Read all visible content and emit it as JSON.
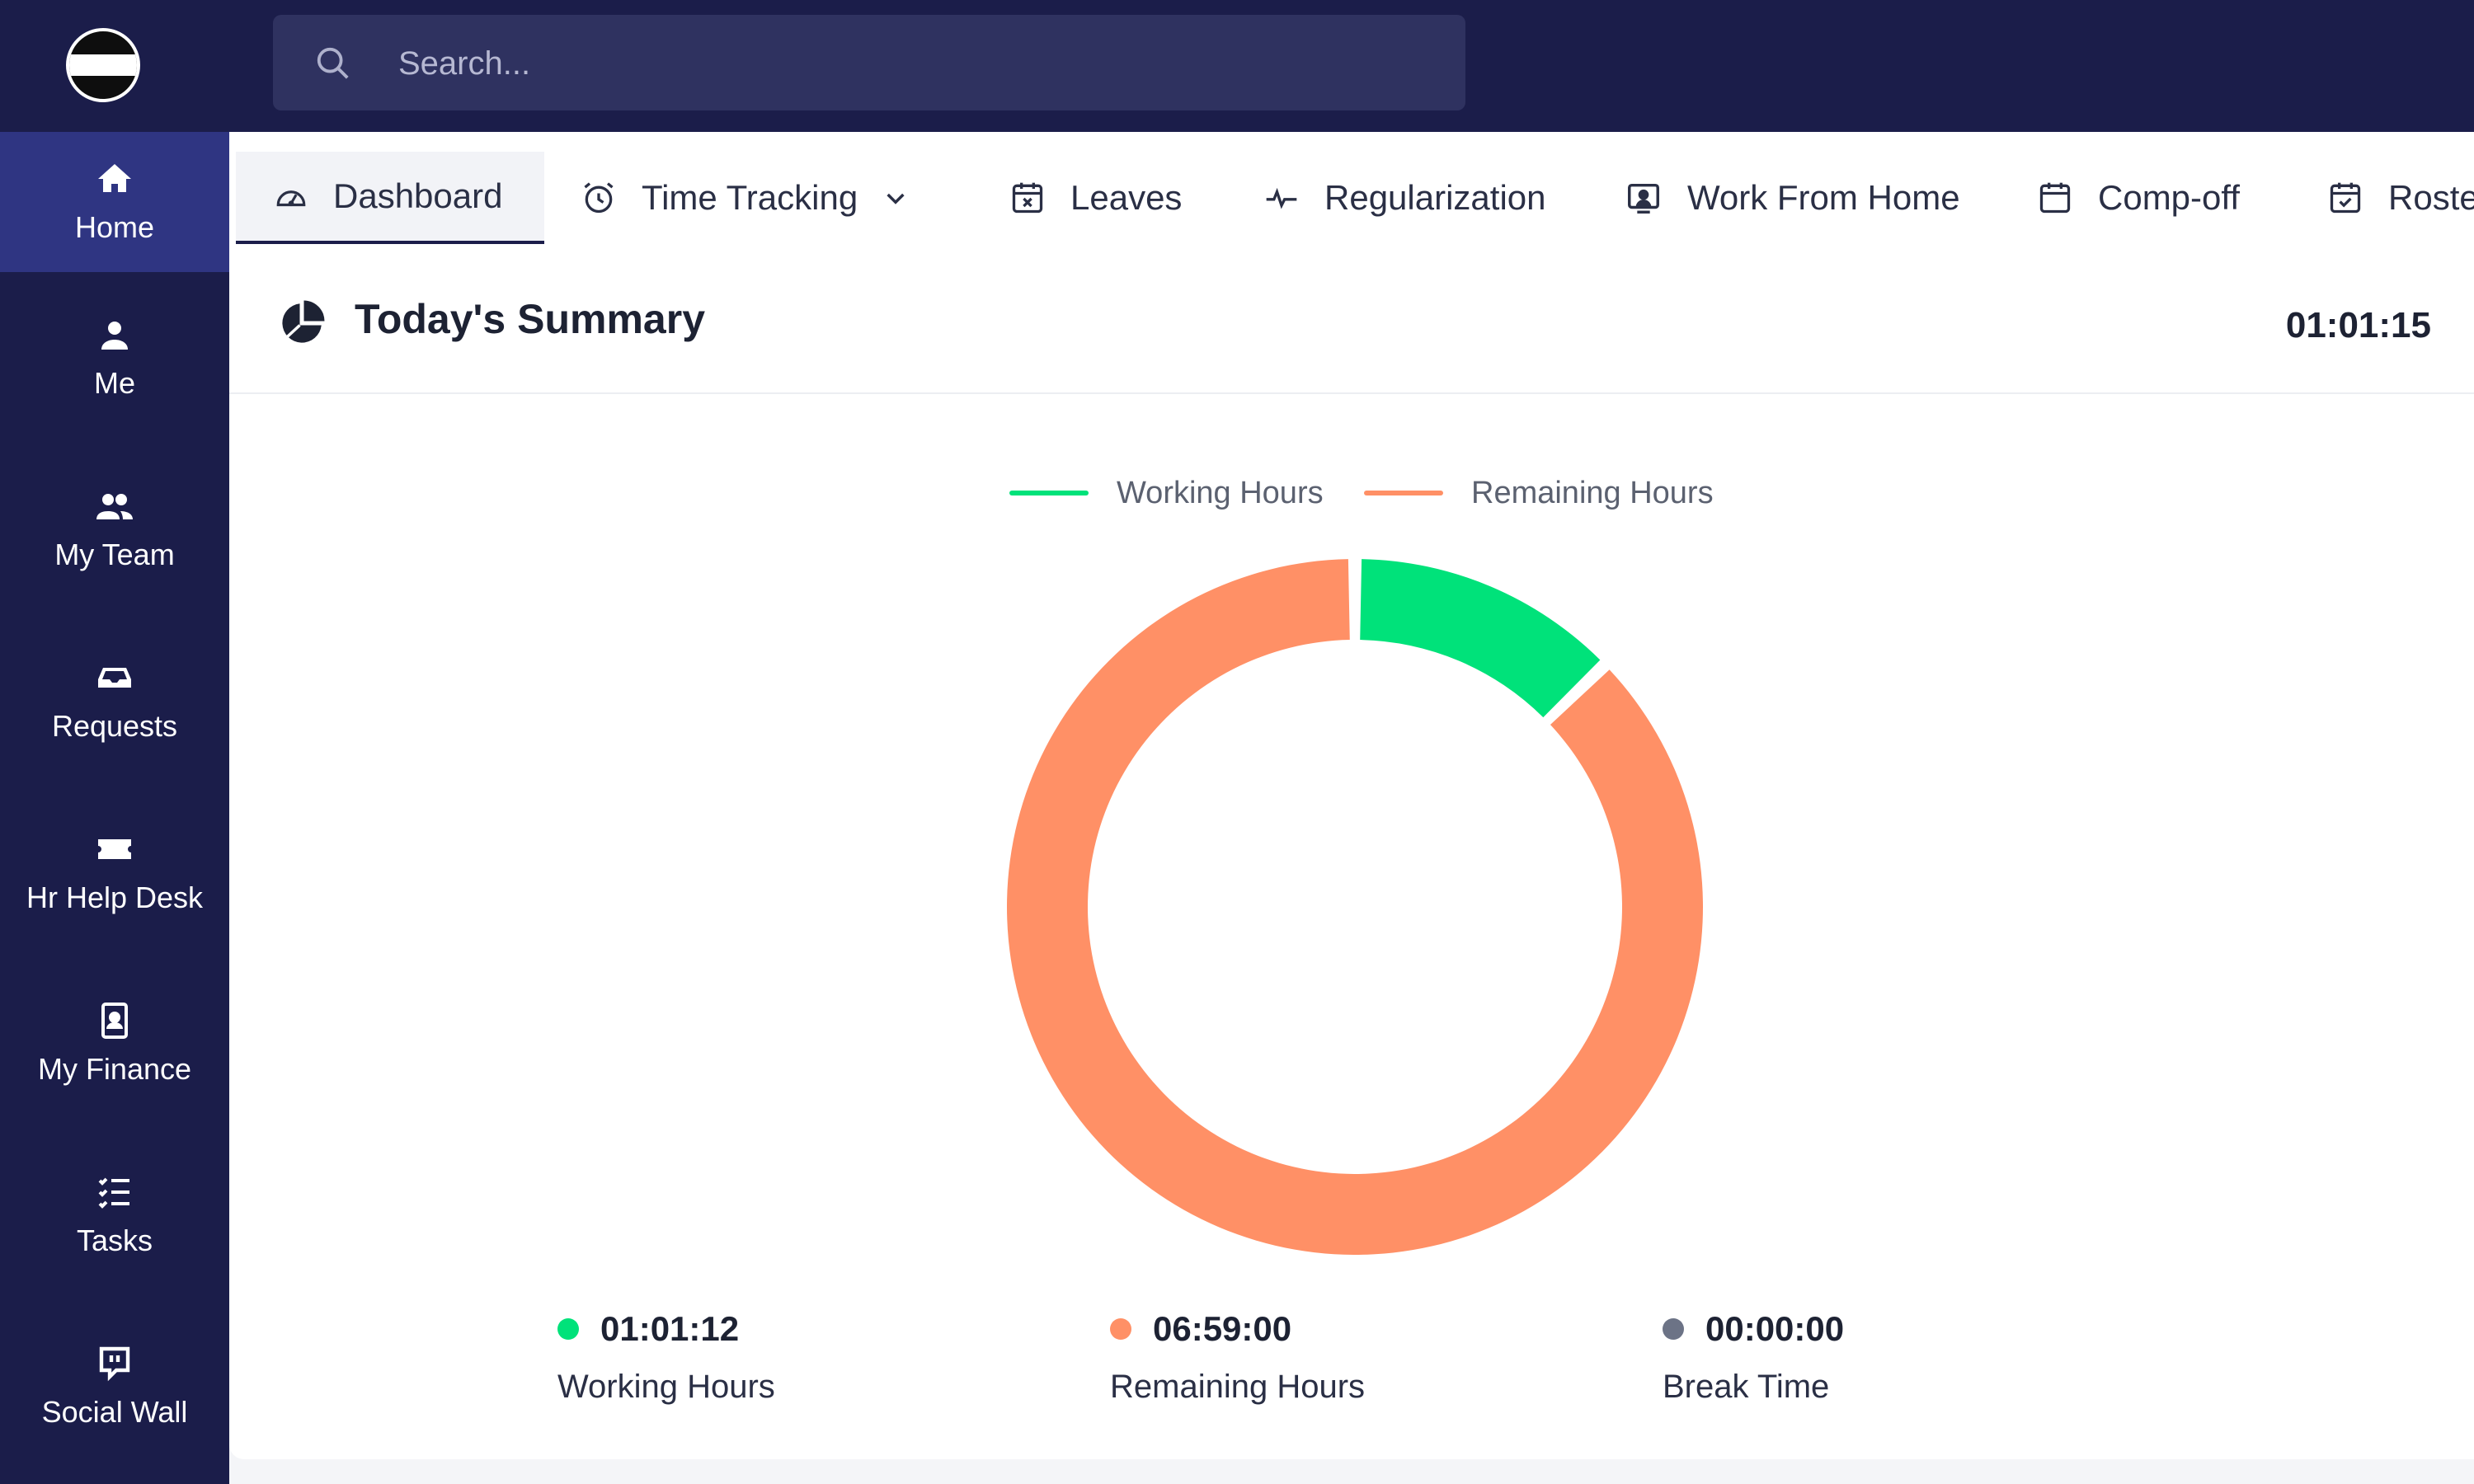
{
  "search": {
    "placeholder": "Search..."
  },
  "sidebar": {
    "items": [
      {
        "label": "Home",
        "icon": "home-icon"
      },
      {
        "label": "Me",
        "icon": "user-icon"
      },
      {
        "label": "My Team",
        "icon": "team-icon"
      },
      {
        "label": "Requests",
        "icon": "inbox-icon"
      },
      {
        "label": "Hr Help Desk",
        "icon": "ticket-icon"
      },
      {
        "label": "My Finance",
        "icon": "finance-icon"
      },
      {
        "label": "Tasks",
        "icon": "tasks-icon"
      },
      {
        "label": "Social Wall",
        "icon": "chat-icon"
      }
    ]
  },
  "tabs": [
    {
      "label": "Dashboard",
      "icon": "gauge-icon"
    },
    {
      "label": "Time Tracking",
      "icon": "alarm-clock-icon"
    },
    {
      "label": "Leaves",
      "icon": "calendar-x-icon"
    },
    {
      "label": "Regularization",
      "icon": "pulse-icon"
    },
    {
      "label": "Work From Home",
      "icon": "monitor-user-icon"
    },
    {
      "label": "Comp-off",
      "icon": "calendar-icon"
    },
    {
      "label": "Roste",
      "icon": "calendar-check-icon"
    }
  ],
  "summary": {
    "title": "Today's Summary",
    "timer": "01:01:15",
    "stats": [
      {
        "value": "01:01:12",
        "label": "Working Hours",
        "color": "#00e27a"
      },
      {
        "value": "06:59:00",
        "label": "Remaining Hours",
        "color": "#ff9066"
      },
      {
        "value": "00:00:00",
        "label": "Break Time",
        "color": "#6c7386"
      }
    ]
  },
  "colors": {
    "navy": "#1b1d4a",
    "active_nav": "#2f3582",
    "working": "#00e27a",
    "remaining": "#ff9066"
  },
  "chart_data": {
    "type": "pie",
    "donut": true,
    "legend_position": "top",
    "series": [
      {
        "name": "Working Hours",
        "value": 1.02,
        "color": "#00e27a"
      },
      {
        "name": "Remaining Hours",
        "value": 6.98,
        "color": "#ff9066"
      }
    ]
  }
}
